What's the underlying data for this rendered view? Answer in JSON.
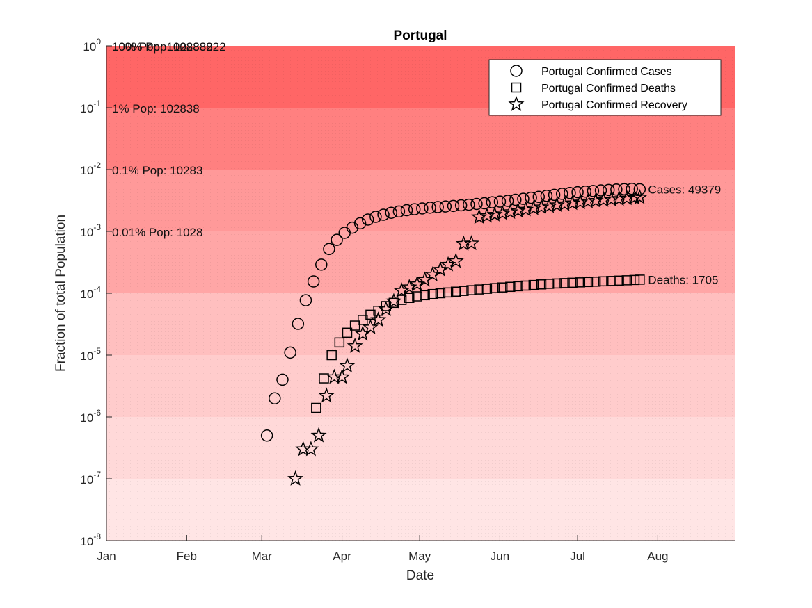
{
  "chart_data": {
    "type": "scatter",
    "title": "Portugal",
    "xlabel": "Date",
    "ylabel": "Fraction of total Population",
    "x_axis": {
      "type": "date",
      "range": [
        "2020-01-01",
        "2020-08-31"
      ],
      "ticks": [
        {
          "date": "2020-01-01",
          "label": "Jan"
        },
        {
          "date": "2020-02-01",
          "label": "Feb"
        },
        {
          "date": "2020-03-01",
          "label": "Mar"
        },
        {
          "date": "2020-04-01",
          "label": "Apr"
        },
        {
          "date": "2020-05-01",
          "label": "May"
        },
        {
          "date": "2020-06-01",
          "label": "Jun"
        },
        {
          "date": "2020-07-01",
          "label": "Jul"
        },
        {
          "date": "2020-08-01",
          "label": "Aug"
        }
      ]
    },
    "y_axis": {
      "scale": "log",
      "ylim": [
        1e-08,
        1
      ],
      "ticks": [
        {
          "value": 1e-08,
          "base": "10",
          "exp": "-8"
        },
        {
          "value": 1e-07,
          "base": "10",
          "exp": "-7"
        },
        {
          "value": 1e-06,
          "base": "10",
          "exp": "-6"
        },
        {
          "value": 1e-05,
          "base": "10",
          "exp": "-5"
        },
        {
          "value": 0.0001,
          "base": "10",
          "exp": "-4"
        },
        {
          "value": 0.001,
          "base": "10",
          "exp": "-3"
        },
        {
          "value": 0.01,
          "base": "10",
          "exp": "-2"
        },
        {
          "value": 0.1,
          "base": "10",
          "exp": "-1"
        },
        {
          "value": 1,
          "base": "10",
          "exp": "0"
        }
      ]
    },
    "population_bands": [
      {
        "lower": 1e-08,
        "upper": 1e-07,
        "color": "#ffe5e5"
      },
      {
        "lower": 1e-07,
        "upper": 1e-06,
        "color": "#ffd9d9"
      },
      {
        "lower": 1e-06,
        "upper": 1e-05,
        "color": "#ffcccc"
      },
      {
        "lower": 1e-05,
        "upper": 0.0001,
        "color": "#ffbfbf"
      },
      {
        "lower": 0.0001,
        "upper": 0.001,
        "color": "#ffa6a6",
        "label": "0.01% Pop: 1028"
      },
      {
        "lower": 0.001,
        "upper": 0.01,
        "color": "#ff9999",
        "label": "0.1% Pop: 10283"
      },
      {
        "lower": 0.01,
        "upper": 0.1,
        "color": "#ff8080",
        "label": "1% Pop: 102838"
      },
      {
        "lower": 0.1,
        "upper": 1,
        "color": "#ff6666",
        "label": "10% Pop: 1028382"
      },
      {
        "lower": 1,
        "upper": 1,
        "label": "100% Pop: 10283822"
      }
    ],
    "legend": {
      "placement": "top-right",
      "entries": [
        {
          "label": "Portugal Confirmed Cases",
          "marker": "circle"
        },
        {
          "label": "Portugal Confirmed Deaths",
          "marker": "square"
        },
        {
          "label": "Portugal Confirmed Recovery",
          "marker": "star"
        }
      ]
    },
    "series": [
      {
        "name": "Portugal Confirmed Cases",
        "marker": "circle",
        "end_label": "Cases: 49379",
        "points": [
          [
            "2020-03-03",
            5e-07
          ],
          [
            "2020-03-06",
            2e-06
          ],
          [
            "2020-03-09",
            4e-06
          ],
          [
            "2020-03-12",
            1.1e-05
          ],
          [
            "2020-03-15",
            3.2e-05
          ],
          [
            "2020-03-18",
            7.7e-05
          ],
          [
            "2020-03-21",
            0.000155
          ],
          [
            "2020-03-24",
            0.00029
          ],
          [
            "2020-03-27",
            0.00052
          ],
          [
            "2020-03-30",
            0.00073
          ],
          [
            "2020-04-02",
            0.00095
          ],
          [
            "2020-04-05",
            0.00115
          ],
          [
            "2020-04-08",
            0.00135
          ],
          [
            "2020-04-11",
            0.00155
          ],
          [
            "2020-04-14",
            0.00172
          ],
          [
            "2020-04-17",
            0.00186
          ],
          [
            "2020-04-20",
            0.002
          ],
          [
            "2020-04-23",
            0.0021
          ],
          [
            "2020-04-26",
            0.0022
          ],
          [
            "2020-04-29",
            0.00228
          ],
          [
            "2020-05-02",
            0.00235
          ],
          [
            "2020-05-05",
            0.00242
          ],
          [
            "2020-05-08",
            0.00247
          ],
          [
            "2020-05-11",
            0.00253
          ],
          [
            "2020-05-14",
            0.00258
          ],
          [
            "2020-05-17",
            0.00264
          ],
          [
            "2020-05-20",
            0.0027
          ],
          [
            "2020-05-23",
            0.00278
          ],
          [
            "2020-05-26",
            0.00285
          ],
          [
            "2020-05-29",
            0.00295
          ],
          [
            "2020-06-01",
            0.00303
          ],
          [
            "2020-06-04",
            0.00312
          ],
          [
            "2020-06-07",
            0.00325
          ],
          [
            "2020-06-10",
            0.00336
          ],
          [
            "2020-06-13",
            0.0035
          ],
          [
            "2020-06-16",
            0.00362
          ],
          [
            "2020-06-19",
            0.00376
          ],
          [
            "2020-06-22",
            0.0039
          ],
          [
            "2020-06-25",
            0.00405
          ],
          [
            "2020-06-28",
            0.00418
          ],
          [
            "2020-07-01",
            0.0043
          ],
          [
            "2020-07-04",
            0.0044
          ],
          [
            "2020-07-07",
            0.0045
          ],
          [
            "2020-07-10",
            0.0046
          ],
          [
            "2020-07-13",
            0.00468
          ],
          [
            "2020-07-16",
            0.00475
          ],
          [
            "2020-07-19",
            0.00481
          ],
          [
            "2020-07-22",
            0.00487
          ],
          [
            "2020-07-25",
            0.0048
          ]
        ]
      },
      {
        "name": "Portugal Confirmed Deaths",
        "marker": "square",
        "end_label": "Deaths: 1705",
        "points": [
          [
            "2020-03-22",
            1.4e-06
          ],
          [
            "2020-03-25",
            4.2e-06
          ],
          [
            "2020-03-28",
            1e-05
          ],
          [
            "2020-03-31",
            1.6e-05
          ],
          [
            "2020-04-03",
            2.3e-05
          ],
          [
            "2020-04-06",
            3e-05
          ],
          [
            "2020-04-09",
            3.7e-05
          ],
          [
            "2020-04-12",
            4.5e-05
          ],
          [
            "2020-04-15",
            5.2e-05
          ],
          [
            "2020-04-18",
            6.2e-05
          ],
          [
            "2020-04-21",
            7e-05
          ],
          [
            "2020-04-24",
            7.8e-05
          ],
          [
            "2020-04-27",
            8.4e-05
          ],
          [
            "2020-04-30",
            8.9e-05
          ],
          [
            "2020-05-03",
            9.3e-05
          ],
          [
            "2020-05-06",
            9.7e-05
          ],
          [
            "2020-05-09",
            0.0001
          ],
          [
            "2020-05-12",
            0.000103
          ],
          [
            "2020-05-15",
            0.000106
          ],
          [
            "2020-05-18",
            0.000109
          ],
          [
            "2020-05-21",
            0.000112
          ],
          [
            "2020-05-24",
            0.000115
          ],
          [
            "2020-05-27",
            0.000118
          ],
          [
            "2020-05-30",
            0.000121
          ],
          [
            "2020-06-02",
            0.000124
          ],
          [
            "2020-06-05",
            0.000127
          ],
          [
            "2020-06-08",
            0.00013
          ],
          [
            "2020-06-11",
            0.000133
          ],
          [
            "2020-06-14",
            0.000136
          ],
          [
            "2020-06-17",
            0.000139
          ],
          [
            "2020-06-20",
            0.000142
          ],
          [
            "2020-06-23",
            0.000144
          ],
          [
            "2020-06-26",
            0.000146
          ],
          [
            "2020-06-29",
            0.000148
          ],
          [
            "2020-07-02",
            0.00015
          ],
          [
            "2020-07-05",
            0.000152
          ],
          [
            "2020-07-08",
            0.000154
          ],
          [
            "2020-07-11",
            0.000156
          ],
          [
            "2020-07-14",
            0.000158
          ],
          [
            "2020-07-17",
            0.00016
          ],
          [
            "2020-07-20",
            0.000162
          ],
          [
            "2020-07-23",
            0.000164
          ],
          [
            "2020-07-25",
            0.000166
          ]
        ]
      },
      {
        "name": "Portugal Confirmed Recovery",
        "marker": "star",
        "points": [
          [
            "2020-03-14",
            1e-07
          ],
          [
            "2020-03-17",
            3e-07
          ],
          [
            "2020-03-20",
            3e-07
          ],
          [
            "2020-03-23",
            5e-07
          ],
          [
            "2020-03-26",
            2.2e-06
          ],
          [
            "2020-03-29",
            4.4e-06
          ],
          [
            "2020-04-01",
            4.4e-06
          ],
          [
            "2020-04-03",
            6.7e-06
          ],
          [
            "2020-04-06",
            1.4e-05
          ],
          [
            "2020-04-09",
            2.2e-05
          ],
          [
            "2020-04-12",
            2.8e-05
          ],
          [
            "2020-04-15",
            3.7e-05
          ],
          [
            "2020-04-18",
            5.5e-05
          ],
          [
            "2020-04-21",
            7.4e-05
          ],
          [
            "2020-04-24",
            0.00011
          ],
          [
            "2020-04-27",
            0.000125
          ],
          [
            "2020-04-30",
            0.00014
          ],
          [
            "2020-05-03",
            0.000165
          ],
          [
            "2020-05-06",
            0.0002
          ],
          [
            "2020-05-09",
            0.00024
          ],
          [
            "2020-05-12",
            0.00029
          ],
          [
            "2020-05-15",
            0.00033
          ],
          [
            "2020-05-18",
            0.00063
          ],
          [
            "2020-05-21",
            0.00064
          ],
          [
            "2020-05-24",
            0.0017
          ],
          [
            "2020-05-27",
            0.00178
          ],
          [
            "2020-05-30",
            0.00186
          ],
          [
            "2020-06-02",
            0.00195
          ],
          [
            "2020-06-05",
            0.00205
          ],
          [
            "2020-06-08",
            0.00215
          ],
          [
            "2020-06-11",
            0.00225
          ],
          [
            "2020-06-14",
            0.00235
          ],
          [
            "2020-06-17",
            0.00245
          ],
          [
            "2020-06-20",
            0.00255
          ],
          [
            "2020-06-23",
            0.00265
          ],
          [
            "2020-06-26",
            0.00275
          ],
          [
            "2020-06-29",
            0.00285
          ],
          [
            "2020-07-02",
            0.00295
          ],
          [
            "2020-07-05",
            0.00305
          ],
          [
            "2020-07-08",
            0.00312
          ],
          [
            "2020-07-11",
            0.0032
          ],
          [
            "2020-07-14",
            0.00328
          ],
          [
            "2020-07-17",
            0.00335
          ],
          [
            "2020-07-20",
            0.00342
          ],
          [
            "2020-07-23",
            0.0035
          ],
          [
            "2020-07-25",
            0.00355
          ]
        ]
      }
    ]
  }
}
